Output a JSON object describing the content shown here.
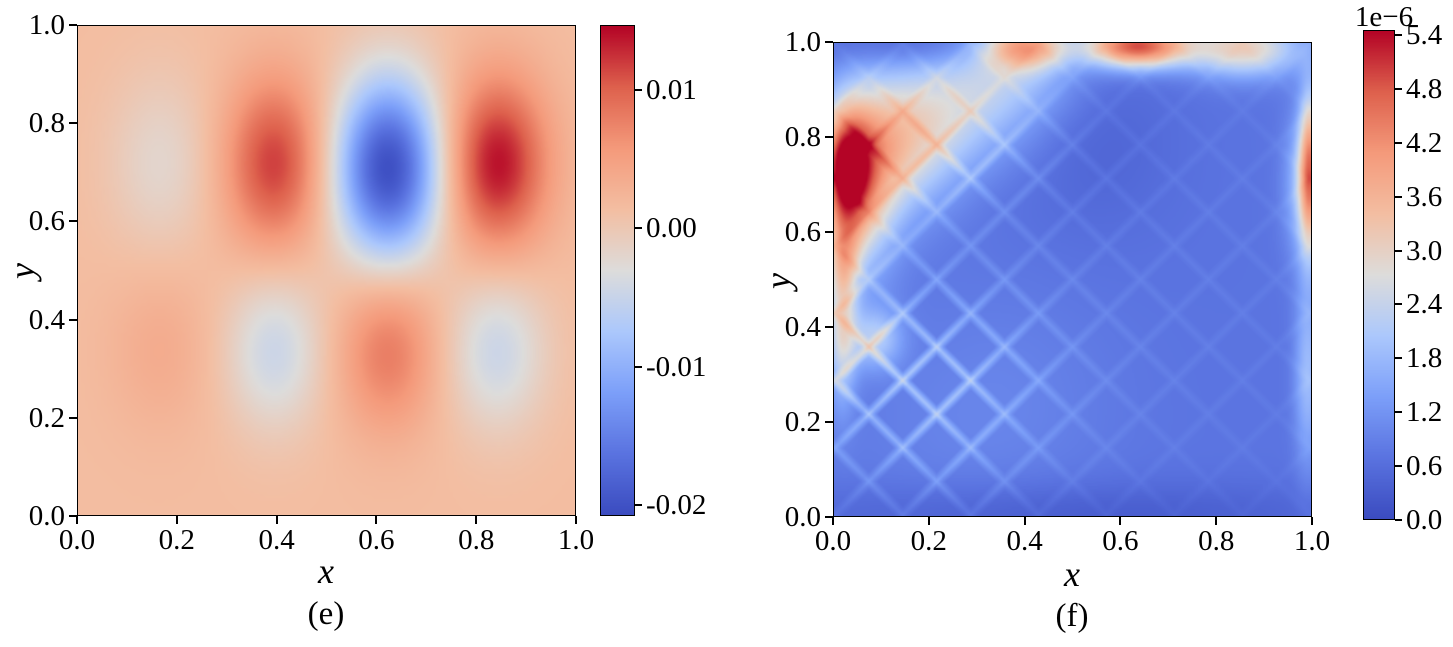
{
  "figure": {
    "background": "#ffffff",
    "description_colormap": "coolwarm"
  },
  "coolwarm_stops": [
    [
      0.0,
      "#3b4cc0"
    ],
    [
      0.125,
      "#5a73e0"
    ],
    [
      0.25,
      "#7c9ff9"
    ],
    [
      0.375,
      "#acc8fc"
    ],
    [
      0.5,
      "#dddcdb"
    ],
    [
      0.625,
      "#f3bea2"
    ],
    [
      0.75,
      "#f49a7b"
    ],
    [
      0.875,
      "#de614d"
    ],
    [
      1.0,
      "#b40426"
    ]
  ],
  "chart_data": [
    {
      "type": "heatmap",
      "panel_label": "(e)",
      "xlabel": "x",
      "ylabel": "y",
      "xlim": [
        0.0,
        1.0
      ],
      "ylim": [
        0.0,
        1.0
      ],
      "x_ticks": [
        0.0,
        0.2,
        0.4,
        0.6,
        0.8,
        1.0
      ],
      "y_ticks": [
        0.0,
        0.2,
        0.4,
        0.6,
        0.8,
        1.0
      ],
      "x_tick_labels": [
        "0.0",
        "0.2",
        "0.4",
        "0.6",
        "0.8",
        "1.0"
      ],
      "y_tick_labels": [
        "0.0",
        "0.2",
        "0.4",
        "0.6",
        "0.8",
        "1.0"
      ],
      "colormap": "coolwarm",
      "vmin": -0.0208,
      "vmax": 0.0147,
      "grid": false,
      "colorbar": {
        "ticks": [
          0.01,
          0.0,
          -0.01,
          -0.02
        ],
        "tick_labels": [
          "0.01",
          "0.00",
          "-0.01",
          "-0.02"
        ]
      },
      "render_res": 150,
      "field": {
        "background": 0.0015,
        "blobs": [
          {
            "x": 0.165,
            "y": 0.72,
            "sx": 0.075,
            "sy": 0.13,
            "amp": -0.0035
          },
          {
            "x": 0.395,
            "y": 0.72,
            "sx": 0.072,
            "sy": 0.125,
            "amp": 0.0105
          },
          {
            "x": 0.625,
            "y": 0.71,
            "sx": 0.075,
            "sy": 0.13,
            "amp": -0.022
          },
          {
            "x": 0.845,
            "y": 0.72,
            "sx": 0.072,
            "sy": 0.125,
            "amp": 0.0128
          },
          {
            "x": 0.165,
            "y": 0.34,
            "sx": 0.075,
            "sy": 0.12,
            "amp": 0.0022
          },
          {
            "x": 0.395,
            "y": 0.335,
            "sx": 0.07,
            "sy": 0.115,
            "amp": -0.0062
          },
          {
            "x": 0.625,
            "y": 0.335,
            "sx": 0.07,
            "sy": 0.115,
            "amp": 0.0068
          },
          {
            "x": 0.845,
            "y": 0.335,
            "sx": 0.07,
            "sy": 0.115,
            "amp": -0.0062
          }
        ]
      },
      "sample_points": [
        {
          "x": 0.85,
          "y": 0.72,
          "value": 0.0143
        },
        {
          "x": 0.4,
          "y": 0.72,
          "value": 0.012
        },
        {
          "x": 0.63,
          "y": 0.71,
          "value": -0.0205
        },
        {
          "x": 0.17,
          "y": 0.72,
          "value": -0.002
        },
        {
          "x": 0.63,
          "y": 0.34,
          "value": 0.0083
        },
        {
          "x": 0.4,
          "y": 0.34,
          "value": -0.0047
        },
        {
          "x": 0.85,
          "y": 0.34,
          "value": -0.0047
        },
        {
          "x": 0.17,
          "y": 0.34,
          "value": 0.0037
        },
        {
          "x": 0.05,
          "y": 0.05,
          "value": 0.0015
        }
      ]
    },
    {
      "type": "heatmap",
      "panel_label": "(f)",
      "xlabel": "x",
      "ylabel": "y",
      "xlim": [
        0.0,
        1.0
      ],
      "ylim": [
        0.0,
        1.0
      ],
      "x_ticks": [
        0.0,
        0.2,
        0.4,
        0.6,
        0.8,
        1.0
      ],
      "y_ticks": [
        0.0,
        0.2,
        0.4,
        0.6,
        0.8,
        1.0
      ],
      "x_tick_labels": [
        "0.0",
        "0.2",
        "0.4",
        "0.6",
        "0.8",
        "1.0"
      ],
      "y_tick_labels": [
        "0.0",
        "0.2",
        "0.4",
        "0.6",
        "0.8",
        "1.0"
      ],
      "colormap": "coolwarm",
      "vmin": 0.0,
      "vmax": 5.456,
      "value_scale": "1e-6",
      "colorbar_offset_label": "1e−6",
      "grid": false,
      "colorbar": {
        "ticks": [
          5.4,
          4.8,
          4.2,
          3.6,
          3.0,
          2.4,
          1.8,
          1.2,
          0.6,
          0.0
        ],
        "tick_labels": [
          "5.4",
          "4.8",
          "4.2",
          "3.6",
          "3.0",
          "2.4",
          "1.8",
          "1.2",
          "0.6",
          "0.0"
        ]
      },
      "render_res": 300,
      "field": {
        "background": 0.72,
        "blobs": [
          {
            "x": 0.022,
            "y": 0.73,
            "sx": 0.035,
            "sy": 0.085,
            "amp": 3.2
          },
          {
            "x": 0.055,
            "y": 0.7,
            "sx": 0.055,
            "sy": 0.13,
            "amp": 2.2
          },
          {
            "x": 0.13,
            "y": 0.78,
            "sx": 0.09,
            "sy": 0.1,
            "amp": 1.9
          },
          {
            "x": 0.26,
            "y": 0.86,
            "sx": 0.12,
            "sy": 0.09,
            "amp": 1.35
          },
          {
            "x": 0.38,
            "y": 0.93,
            "sx": 0.1,
            "sy": 0.06,
            "amp": 0.8
          },
          {
            "x": 0.4,
            "y": 0.995,
            "sx": 0.062,
            "sy": 0.035,
            "amp": 2.9
          },
          {
            "x": 0.635,
            "y": 0.995,
            "sx": 0.075,
            "sy": 0.032,
            "amp": 4.2
          },
          {
            "x": 0.86,
            "y": 0.99,
            "sx": 0.085,
            "sy": 0.042,
            "amp": 2.35
          },
          {
            "x": 1.0,
            "y": 0.73,
            "sx": 0.016,
            "sy": 0.115,
            "amp": 3.1
          },
          {
            "x": 0.985,
            "y": 0.7,
            "sx": 0.028,
            "sy": 0.11,
            "amp": 1.2
          },
          {
            "x": 0.015,
            "y": 0.4,
            "sx": 0.022,
            "sy": 0.11,
            "amp": 1.85
          },
          {
            "x": 0.02,
            "y": 0.55,
            "sx": 0.025,
            "sy": 0.06,
            "amp": 1.3
          },
          {
            "x": 0.085,
            "y": 0.375,
            "sx": 0.04,
            "sy": 0.045,
            "amp": 1.35
          },
          {
            "x": 0.995,
            "y": 0.3,
            "sx": 0.02,
            "sy": 0.14,
            "amp": 1.15
          },
          {
            "x": 0.25,
            "y": 0.25,
            "sx": 0.2,
            "sy": 0.17,
            "amp": 0.45
          },
          {
            "x": 0.5,
            "y": 0.0,
            "sx": 0.45,
            "sy": 0.05,
            "amp": -0.42
          },
          {
            "x": 0.55,
            "y": 0.8,
            "sx": 0.12,
            "sy": 0.14,
            "amp": -0.25
          },
          {
            "x": 0.16,
            "y": 0.995,
            "sx": 0.14,
            "sy": 0.03,
            "amp": -0.45
          }
        ],
        "texture": {
          "freq": 7,
          "sharp": 7,
          "base": 0.22,
          "amp": 1.0,
          "windows": [
            {
              "x": 0.18,
              "y": 0.28,
              "sx": 0.16,
              "sy": 0.15,
              "w": 1.0
            },
            {
              "x": 0.22,
              "y": 0.78,
              "sx": 0.14,
              "sy": 0.1,
              "w": 0.55
            },
            {
              "x": 0.5,
              "y": 0.5,
              "sx": 0.5,
              "sy": 0.45,
              "w": 0.18
            }
          ]
        }
      },
      "sample_points": [
        {
          "x": 0.03,
          "y": 0.73,
          "value": 5.4
        },
        {
          "x": 0.1,
          "y": 0.75,
          "value": 4.6
        },
        {
          "x": 0.25,
          "y": 0.85,
          "value": 2.6
        },
        {
          "x": 0.63,
          "y": 0.98,
          "value": 4.6
        },
        {
          "x": 0.4,
          "y": 0.97,
          "value": 3.4
        },
        {
          "x": 0.86,
          "y": 0.97,
          "value": 2.6
        },
        {
          "x": 0.99,
          "y": 0.72,
          "value": 3.2
        },
        {
          "x": 0.08,
          "y": 0.38,
          "value": 2.3
        },
        {
          "x": 0.99,
          "y": 0.3,
          "value": 1.8
        },
        {
          "x": 0.5,
          "y": 0.5,
          "value": 0.8
        },
        {
          "x": 0.5,
          "y": 0.02,
          "value": 0.4
        }
      ]
    }
  ]
}
